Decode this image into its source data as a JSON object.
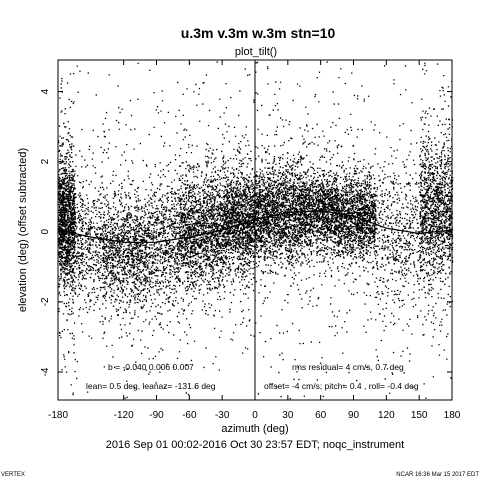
{
  "chart_data": {
    "type": "scatter",
    "title": "u.3m v.3m w.3m stn=10",
    "subtitle": "plot_tilt()",
    "xlabel": "azimuth (deg)",
    "ylabel": "elevation (deg)  (offset subtracted)",
    "xlim": [
      -180,
      180
    ],
    "ylim": [
      -4.8,
      4.9
    ],
    "xticks": [
      -180,
      -120,
      -90,
      -60,
      -30,
      0,
      30,
      60,
      90,
      120,
      150,
      180
    ],
    "yticks": [
      -4,
      -2,
      0,
      2,
      4
    ],
    "date_range": "2016 Sep 01 00:02-2016 Oct 30 23:57 EDT; noqc_instrument",
    "annotations": {
      "b": "b = -0.040  0.006  0.007",
      "lean": "lean= 0.5 deg, leanaz= -131.6 deg",
      "rms": "rms residual= 4 cm/s, 0.7 deg",
      "offset": "offset= -4 cm/s; pitch=  0.4 , roll= -0.4 deg"
    },
    "footer_left": "VERTEX",
    "footer_right": "NCAR 16:36 Mar 15 2017 EDT",
    "fit_curve": {
      "x": [
        -180,
        -150,
        -120,
        -90,
        -60,
        -30,
        0,
        30,
        60,
        90,
        120,
        150,
        180
      ],
      "y": [
        0.05,
        -0.15,
        -0.3,
        -0.3,
        -0.15,
        0.05,
        0.35,
        0.55,
        0.6,
        0.45,
        0.1,
        -0.05,
        0.05
      ]
    },
    "point_density": [
      {
        "x": [
          -180,
          -165
        ],
        "y_center": 0.3,
        "spread": 0.9,
        "count": 1500
      },
      {
        "x": [
          -165,
          -140
        ],
        "y_center": -0.3,
        "spread": 0.9,
        "count": 500
      },
      {
        "x": [
          -140,
          -100
        ],
        "y_center": -0.55,
        "spread": 0.8,
        "count": 1300
      },
      {
        "x": [
          -100,
          -70
        ],
        "y_center": -0.3,
        "spread": 0.9,
        "count": 800
      },
      {
        "x": [
          -70,
          -30
        ],
        "y_center": 0.1,
        "spread": 0.8,
        "count": 1800
      },
      {
        "x": [
          -30,
          0
        ],
        "y_center": 0.35,
        "spread": 0.7,
        "count": 1600
      },
      {
        "x": [
          0,
          40
        ],
        "y_center": 0.5,
        "spread": 0.7,
        "count": 1900
      },
      {
        "x": [
          40,
          75
        ],
        "y_center": 0.55,
        "spread": 0.6,
        "count": 1600
      },
      {
        "x": [
          75,
          110
        ],
        "y_center": 0.4,
        "spread": 0.6,
        "count": 1500
      },
      {
        "x": [
          110,
          150
        ],
        "y_center": -0.15,
        "spread": 1.1,
        "count": 600
      },
      {
        "x": [
          150,
          180
        ],
        "y_center": 0.6,
        "spread": 1.0,
        "count": 1400
      }
    ],
    "grid": false
  }
}
